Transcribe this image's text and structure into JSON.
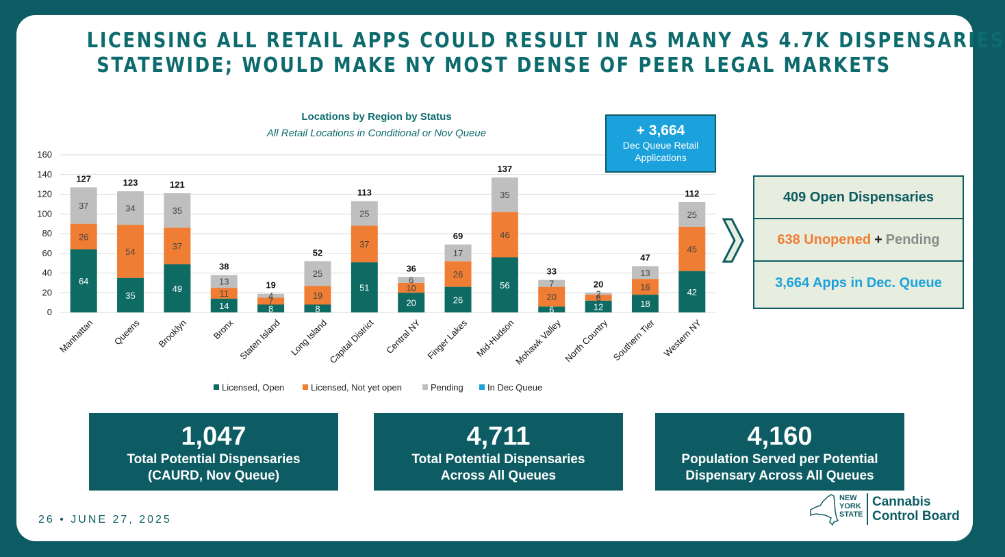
{
  "slide": {
    "title_line1": "LICENSING ALL RETAIL APPS COULD RESULT IN AS MANY AS 4.7K DISPENSARIES",
    "title_line2": "STATEWIDE; WOULD MAKE NY MOST DENSE OF PEER LEGAL MARKETS",
    "footer": "26 • JUNE 27, 2025"
  },
  "dec_box": {
    "value": "+ 3,664",
    "label_line1": "Dec Queue Retail",
    "label_line2": "Applications"
  },
  "summary": {
    "open": "409 Open Dispensaries",
    "unopened": "638 Unopened",
    "plus": "+",
    "pending": "Pending",
    "apps": "3,664 Apps in Dec. Queue"
  },
  "stats": [
    {
      "value": "1,047",
      "label_line1": "Total Potential Dispensaries",
      "label_line2": "(CAURD, Nov Queue)"
    },
    {
      "value": "4,711",
      "label_line1": "Total Potential Dispensaries",
      "label_line2": "Across All Queues"
    },
    {
      "value": "4,160",
      "label_line1": "Population Served per Potential",
      "label_line2": "Dispensary Across All Queues"
    }
  ],
  "logo": {
    "state_line1": "NEW",
    "state_line2": "YORK",
    "state_line3": "STATE",
    "board_line1": "Cannabis",
    "board_line2": "Control Board"
  },
  "colors": {
    "teal": "#0d5c63",
    "open": "#0d6b63",
    "not_open": "#ef7d33",
    "pending": "#bfbfbf",
    "dec": "#1ba1db"
  },
  "chart_data": {
    "type": "bar",
    "stacked": true,
    "title": "Locations by Region by Status",
    "subtitle": "All Retail Locations in Conditional or Nov Queue",
    "categories": [
      "Manhattan",
      "Queens",
      "Brooklyn",
      "Bronx",
      "Staten Island",
      "Long Island",
      "Capital District",
      "Central NY",
      "Finger Lakes",
      "Mid-Hudson",
      "Mohawk Valley",
      "North Country",
      "Southern Tier",
      "Western NY"
    ],
    "series": [
      {
        "name": "Licensed, Open",
        "color": "#0d6b63",
        "values": [
          64,
          35,
          49,
          14,
          8,
          8,
          51,
          20,
          26,
          56,
          6,
          12,
          18,
          42
        ]
      },
      {
        "name": "Licensed, Not yet open",
        "color": "#ef7d33",
        "values": [
          26,
          54,
          37,
          11,
          7,
          19,
          37,
          10,
          26,
          46,
          20,
          6,
          16,
          45
        ]
      },
      {
        "name": "Pending",
        "color": "#bfbfbf",
        "values": [
          37,
          34,
          35,
          13,
          4,
          25,
          25,
          6,
          17,
          35,
          7,
          2,
          13,
          25
        ]
      },
      {
        "name": "In Dec Queue",
        "color": "#1ba1db",
        "values": [
          0,
          0,
          0,
          0,
          0,
          0,
          0,
          0,
          0,
          0,
          0,
          0,
          0,
          0
        ]
      }
    ],
    "totals": [
      127,
      123,
      121,
      38,
      19,
      52,
      113,
      36,
      69,
      137,
      33,
      20,
      47,
      112
    ],
    "yticks": [
      0,
      20,
      40,
      60,
      80,
      100,
      120,
      140,
      160
    ],
    "ylim": [
      0,
      160
    ],
    "xlabel": "",
    "ylabel": "",
    "grid": true,
    "legend": "bottom"
  }
}
